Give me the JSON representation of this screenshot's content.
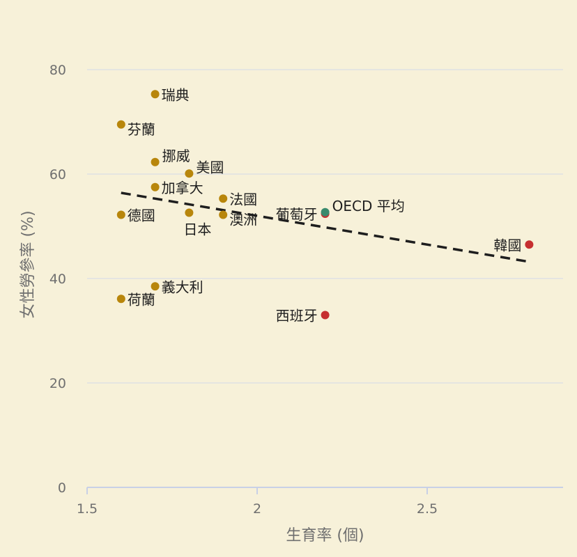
{
  "chart_data": {
    "type": "scatter",
    "title": "",
    "xlabel": "生育率 (個)",
    "ylabel": "女性勞參率 (%)",
    "xlim": [
      1.5,
      2.9
    ],
    "ylim": [
      0,
      80
    ],
    "x_ticks": [
      "1.5",
      "2",
      "2.5"
    ],
    "x_tick_values": [
      1.5,
      2,
      2.5
    ],
    "y_ticks": [
      "0",
      "20",
      "40",
      "60",
      "80"
    ],
    "y_tick_values": [
      0,
      20,
      40,
      60,
      80
    ],
    "grid": true,
    "colors": {
      "default": "#b8860b",
      "highlight": "#c62f30",
      "average": "#3a8a6d",
      "trend": "#1e1e1e"
    },
    "points": [
      {
        "name": "瑞典",
        "x": 1.7,
        "y": 75.3,
        "group": "default",
        "label_pos": "right"
      },
      {
        "name": "芬蘭",
        "x": 1.6,
        "y": 69.5,
        "group": "default",
        "label_pos": "right-below"
      },
      {
        "name": "挪威",
        "x": 1.7,
        "y": 62.3,
        "group": "default",
        "label_pos": "right-above"
      },
      {
        "name": "美國",
        "x": 1.8,
        "y": 60.1,
        "group": "default",
        "label_pos": "right-above"
      },
      {
        "name": "加拿大",
        "x": 1.7,
        "y": 57.5,
        "group": "default",
        "label_pos": "right"
      },
      {
        "name": "法國",
        "x": 1.9,
        "y": 55.3,
        "group": "default",
        "label_pos": "right"
      },
      {
        "name": "德國",
        "x": 1.6,
        "y": 52.2,
        "group": "default",
        "label_pos": "right"
      },
      {
        "name": "日本",
        "x": 1.8,
        "y": 52.6,
        "group": "default",
        "label_pos": "below"
      },
      {
        "name": "澳洲",
        "x": 1.9,
        "y": 52.2,
        "group": "default",
        "label_pos": "right-below"
      },
      {
        "name": "義大利",
        "x": 1.7,
        "y": 38.5,
        "group": "default",
        "label_pos": "right"
      },
      {
        "name": "荷蘭",
        "x": 1.6,
        "y": 36.1,
        "group": "default",
        "label_pos": "right"
      },
      {
        "name": "葡萄牙",
        "x": 2.2,
        "y": 52.4,
        "group": "highlight",
        "label_pos": "left"
      },
      {
        "name": "OECD 平均",
        "x": 2.2,
        "y": 52.7,
        "group": "average",
        "label_pos": "right-above"
      },
      {
        "name": "韓國",
        "x": 2.8,
        "y": 46.5,
        "group": "highlight",
        "label_pos": "left"
      },
      {
        "name": "西班牙",
        "x": 2.2,
        "y": 33.0,
        "group": "highlight",
        "label_pos": "left"
      }
    ],
    "trendline": {
      "style": "dashed",
      "x": [
        1.6,
        2.8
      ],
      "y": [
        56.4,
        43.2
      ]
    }
  }
}
